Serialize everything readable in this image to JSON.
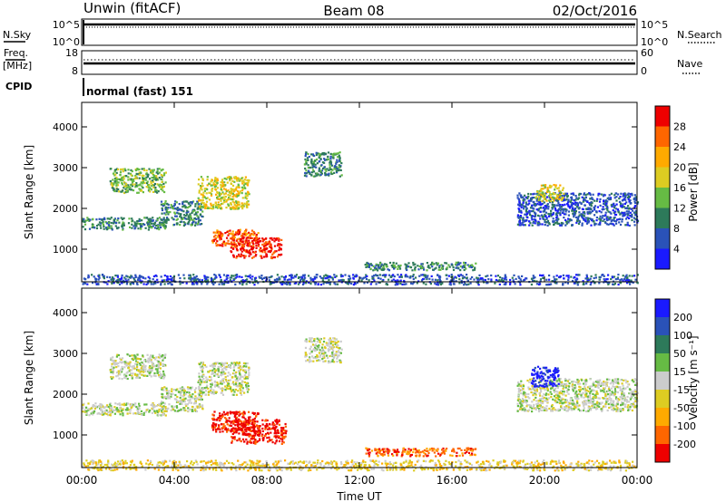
{
  "header": {
    "station": "Unwin (fitACF)",
    "beam": "Beam 08",
    "date": "02/Oct/2016"
  },
  "noise_panel": {
    "left_label": "N.Sky",
    "left_ticks": [
      "10^5",
      "10^0"
    ],
    "right_ticks": [
      "10^5",
      "10^0"
    ],
    "right_label": "N.Search"
  },
  "freq_panel": {
    "left_label_1": "Freq.",
    "left_label_2": "[MHz]",
    "left_ticks": [
      "18",
      "8"
    ],
    "right_ticks": [
      "60",
      "0"
    ],
    "right_label": "Nave"
  },
  "cpid": {
    "label": "CPID",
    "text": "normal (fast) 151"
  },
  "chart_data": [
    {
      "type": "heatmap",
      "quantity": "Power",
      "ylabel": "Slant Range [km]",
      "yticks": [
        "1000",
        "2000",
        "3000",
        "4000"
      ],
      "ylim": [
        200,
        4600
      ],
      "xticks": [
        "00:00",
        "04:00",
        "08:00",
        "12:00",
        "16:00",
        "20:00",
        "00:00"
      ],
      "colorbar_label": "Power [dB]",
      "colorbar_ticks": [
        "4",
        "8",
        "12",
        "16",
        "20",
        "24",
        "28"
      ],
      "colorbar_colors": [
        "#1a1aff",
        "#2a52b8",
        "#2d7a5a",
        "#66bb44",
        "#ddcc22",
        "#ffaa00",
        "#ff6600",
        "#ee0000"
      ],
      "regions": [
        {
          "t": [
            0.0,
            3.6
          ],
          "r": [
            1500,
            1800
          ],
          "level": 2
        },
        {
          "t": [
            1.2,
            3.6
          ],
          "r": [
            2400,
            3000
          ],
          "level": 3
        },
        {
          "t": [
            3.4,
            5.2
          ],
          "r": [
            1600,
            2200
          ],
          "level": 2
        },
        {
          "t": [
            5.0,
            7.2
          ],
          "r": [
            2000,
            2800
          ],
          "level": 4
        },
        {
          "t": [
            5.6,
            7.6
          ],
          "r": [
            1100,
            1500
          ],
          "level": 6
        },
        {
          "t": [
            6.4,
            8.6
          ],
          "r": [
            800,
            1300
          ],
          "level": 7
        },
        {
          "t": [
            9.6,
            11.2
          ],
          "r": [
            2800,
            3400
          ],
          "level": 2
        },
        {
          "t": [
            12.2,
            17.0
          ],
          "r": [
            500,
            700
          ],
          "level": 2
        },
        {
          "t": [
            0.0,
            24.0
          ],
          "r": [
            150,
            400
          ],
          "level": 1
        },
        {
          "t": [
            18.8,
            24.0
          ],
          "r": [
            1600,
            2400
          ],
          "level": 1
        },
        {
          "t": [
            19.6,
            20.8
          ],
          "r": [
            2200,
            2600
          ],
          "level": 4
        }
      ]
    },
    {
      "type": "heatmap",
      "quantity": "Velocity",
      "ylabel": "Slant Range [km]",
      "yticks": [
        "1000",
        "2000",
        "3000",
        "4000"
      ],
      "ylim": [
        200,
        4600
      ],
      "xticks": [
        "00:00",
        "04:00",
        "08:00",
        "12:00",
        "16:00",
        "20:00",
        "00:00"
      ],
      "xlabel": "Time UT",
      "colorbar_label": "Velocity [m s⁻¹]",
      "colorbar_ticks": [
        "200",
        "100",
        "50",
        "15",
        "-15",
        "-50",
        "-100",
        "-200"
      ],
      "colorbar_colors": [
        "#1a1aff",
        "#2a52b8",
        "#2d7a5a",
        "#66bb44",
        "#cccccc",
        "#ddcc22",
        "#ffaa00",
        "#ff6600",
        "#ee0000"
      ],
      "regions": [
        {
          "t": [
            0.0,
            3.6
          ],
          "r": [
            1500,
            1800
          ],
          "level": 4
        },
        {
          "t": [
            1.2,
            3.6
          ],
          "r": [
            2400,
            3000
          ],
          "level": 4
        },
        {
          "t": [
            3.4,
            5.2
          ],
          "r": [
            1600,
            2200
          ],
          "level": 4
        },
        {
          "t": [
            5.0,
            7.2
          ],
          "r": [
            2000,
            2800
          ],
          "level": 4
        },
        {
          "t": [
            5.6,
            7.6
          ],
          "r": [
            1100,
            1600
          ],
          "level": 8
        },
        {
          "t": [
            6.4,
            8.8
          ],
          "r": [
            800,
            1400
          ],
          "level": 8
        },
        {
          "t": [
            9.6,
            11.2
          ],
          "r": [
            2800,
            3400
          ],
          "level": 4
        },
        {
          "t": [
            12.2,
            17.0
          ],
          "r": [
            500,
            700
          ],
          "level": 7
        },
        {
          "t": [
            0.0,
            24.0
          ],
          "r": [
            150,
            400
          ],
          "level": 5
        },
        {
          "t": [
            18.8,
            24.0
          ],
          "r": [
            1600,
            2400
          ],
          "level": 4
        },
        {
          "t": [
            19.4,
            20.6
          ],
          "r": [
            2200,
            2700
          ],
          "level": 0
        }
      ]
    }
  ]
}
